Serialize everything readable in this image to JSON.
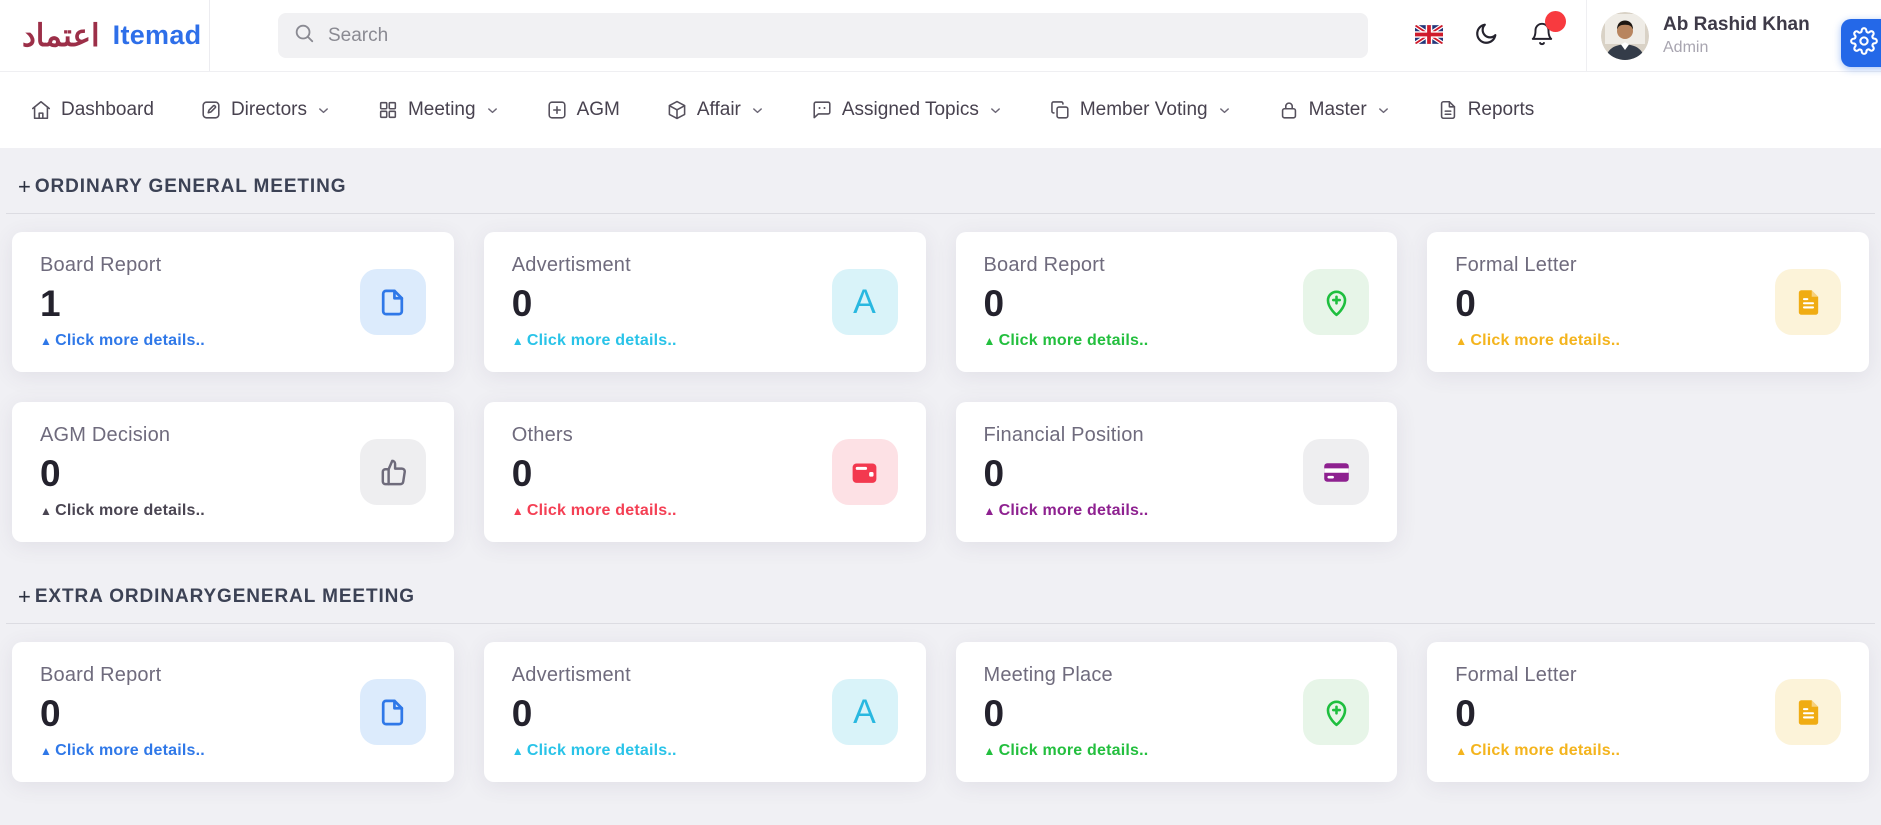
{
  "ui": {
    "link_marker": "▲"
  },
  "header": {
    "brand": {
      "logo_text": "اعتماد",
      "name": "Itemad"
    },
    "search": {
      "placeholder": "Search"
    },
    "user": {
      "name": "Ab Rashid Khan",
      "role": "Admin"
    }
  },
  "nav": {
    "items": [
      {
        "label": "Dashboard",
        "icon": "home-icon",
        "dropdown": false
      },
      {
        "label": "Directors",
        "icon": "edit-icon",
        "dropdown": true
      },
      {
        "label": "Meeting",
        "icon": "grid-icon",
        "dropdown": true
      },
      {
        "label": "AGM",
        "icon": "plus-square-icon",
        "dropdown": false
      },
      {
        "label": "Affair",
        "icon": "box-icon",
        "dropdown": true
      },
      {
        "label": "Assigned Topics",
        "icon": "chat-icon",
        "dropdown": true
      },
      {
        "label": "Member Voting",
        "icon": "copy-icon",
        "dropdown": true
      },
      {
        "label": "Master",
        "icon": "lock-icon",
        "dropdown": true
      },
      {
        "label": "Reports",
        "icon": "file-text-icon",
        "dropdown": false
      }
    ]
  },
  "sections": [
    {
      "prefix": "+",
      "title": "ORDINARY GENERAL MEETING",
      "cards": [
        {
          "title": "Board Report",
          "count": "1",
          "link_label": "Click more details..",
          "accent": "#2f78e8",
          "icon": "file-icon",
          "icon_color": "#2f78e8",
          "icon_bg": "#dcebfc"
        },
        {
          "title": "Advertisment",
          "count": "0",
          "link_label": "Click more details..",
          "accent": "#29c3e8",
          "icon": "letter-a-icon",
          "icon_color": "#29b8e0",
          "icon_bg": "#d9f3f9"
        },
        {
          "title": "Board Report",
          "count": "0",
          "link_label": "Click more details..",
          "accent": "#23bf3e",
          "icon": "map-pin-plus-icon",
          "icon_color": "#1fbf3f",
          "icon_bg": "#e7f5e8"
        },
        {
          "title": "Formal Letter",
          "count": "0",
          "link_label": "Click more details..",
          "accent": "#f4b41d",
          "icon": "file-lines-icon",
          "icon_color": "#f0ac13",
          "icon_bg": "#fcf3d9"
        },
        {
          "title": "AGM Decision",
          "count": "0",
          "link_label": "Click more details..",
          "accent": "#4a4552",
          "icon": "thumbs-up-icon",
          "icon_color": "#6e6b7b",
          "icon_bg": "#eeeef0"
        },
        {
          "title": "Others",
          "count": "0",
          "link_label": "Click more details..",
          "accent": "#f43f54",
          "icon": "wallet-icon",
          "icon_color": "#f3394f",
          "icon_bg": "#fde1e5"
        },
        {
          "title": "Financial Position",
          "count": "0",
          "link_label": "Click more details..",
          "accent": "#8e2190",
          "icon": "credit-card-icon",
          "icon_color": "#8e2190",
          "icon_bg": "#eeeef0"
        }
      ]
    },
    {
      "prefix": "+",
      "title": "EXTRA ORDINARYGENERAL MEETING",
      "cards": [
        {
          "title": "Board Report",
          "count": "0",
          "link_label": "Click more details..",
          "accent": "#2f78e8",
          "icon": "file-icon",
          "icon_color": "#2f78e8",
          "icon_bg": "#dcebfc"
        },
        {
          "title": "Advertisment",
          "count": "0",
          "link_label": "Click more details..",
          "accent": "#29c3e8",
          "icon": "letter-a-icon",
          "icon_color": "#29b8e0",
          "icon_bg": "#d9f3f9"
        },
        {
          "title": "Meeting Place",
          "count": "0",
          "link_label": "Click more details..",
          "accent": "#23bf3e",
          "icon": "map-pin-plus-icon",
          "icon_color": "#1fbf3f",
          "icon_bg": "#e7f5e8"
        },
        {
          "title": "Formal Letter",
          "count": "0",
          "link_label": "Click more details..",
          "accent": "#f4b41d",
          "icon": "file-lines-icon",
          "icon_color": "#f0ac13",
          "icon_bg": "#fcf3d9"
        }
      ]
    }
  ]
}
